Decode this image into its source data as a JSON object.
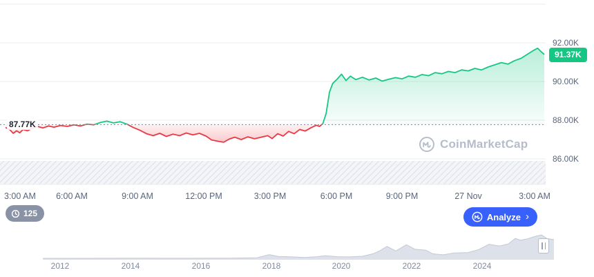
{
  "colors": {
    "up": "#16c784",
    "down": "#ea3943",
    "accent_blue": "#3861fb",
    "axis_text": "#58667e",
    "gridline": "#ebedf1",
    "baseline_dots": "#767f92",
    "nav_fill": "#dde1e9",
    "nav_stroke": "#c2c9d6"
  },
  "watermark": {
    "text": "CoinMarketCap"
  },
  "controls": {
    "history_count": "125",
    "analyze_label": "Analyze",
    "analyze_chevron": "›"
  },
  "chart_data": {
    "type": "line",
    "title": "Cryptocurrency price — 24h baseline chart with historical navigator",
    "baseline_value": 87.77,
    "baseline_label": "87.77K",
    "current_price_value": 91.37,
    "current_price_label": "91.37K",
    "y_unit": "K",
    "ylim": [
      85.5,
      94
    ],
    "y_ticks": [
      92,
      90,
      88,
      86
    ],
    "y_tick_labels": [
      "92.00K",
      "90.00K",
      "88.00K",
      "86.00K"
    ],
    "gridline_values": [
      94,
      92,
      90,
      88,
      86
    ],
    "x_ticks_hours": [
      0,
      3,
      6,
      9,
      12,
      15,
      18,
      21,
      24
    ],
    "x_tick_labels": [
      "3:00 AM",
      "6:00 AM",
      "9:00 AM",
      "12:00 PM",
      "3:00 PM",
      "6:00 PM",
      "9:00 PM",
      "27 Nov",
      "3:00 AM"
    ],
    "x_hours_span": 24.45,
    "series": [
      {
        "name": "price",
        "points": [
          [
            0,
            87.62
          ],
          [
            0.2,
            87.5
          ],
          [
            0.35,
            87.32
          ],
          [
            0.5,
            87.45
          ],
          [
            0.65,
            87.35
          ],
          [
            0.8,
            87.52
          ],
          [
            1,
            87.45
          ],
          [
            1.2,
            87.58
          ],
          [
            1.45,
            87.68
          ],
          [
            1.7,
            87.6
          ],
          [
            1.95,
            87.7
          ],
          [
            2.2,
            87.64
          ],
          [
            2.5,
            87.73
          ],
          [
            2.8,
            87.68
          ],
          [
            3.1,
            87.76
          ],
          [
            3.4,
            87.7
          ],
          [
            3.7,
            87.8
          ],
          [
            4,
            87.76
          ],
          [
            4.3,
            87.88
          ],
          [
            4.6,
            87.95
          ],
          [
            4.9,
            87.86
          ],
          [
            5.2,
            87.92
          ],
          [
            5.5,
            87.8
          ],
          [
            5.8,
            87.62
          ],
          [
            6.1,
            87.48
          ],
          [
            6.4,
            87.3
          ],
          [
            6.7,
            87.2
          ],
          [
            7,
            87.32
          ],
          [
            7.3,
            87.16
          ],
          [
            7.6,
            87.28
          ],
          [
            7.9,
            87.2
          ],
          [
            8.2,
            87.34
          ],
          [
            8.5,
            87.24
          ],
          [
            8.8,
            87.32
          ],
          [
            9.1,
            87.18
          ],
          [
            9.35,
            86.98
          ],
          [
            9.6,
            86.92
          ],
          [
            9.9,
            86.86
          ],
          [
            10.15,
            87.02
          ],
          [
            10.4,
            87.12
          ],
          [
            10.7,
            87
          ],
          [
            11,
            87.14
          ],
          [
            11.3,
            87.04
          ],
          [
            11.6,
            87.12
          ],
          [
            11.9,
            87.2
          ],
          [
            12.1,
            87.05
          ],
          [
            12.35,
            87.3
          ],
          [
            12.6,
            87.18
          ],
          [
            12.85,
            87.42
          ],
          [
            13.1,
            87.3
          ],
          [
            13.35,
            87.52
          ],
          [
            13.6,
            87.44
          ],
          [
            13.85,
            87.6
          ],
          [
            14.1,
            87.74
          ],
          [
            14.25,
            87.68
          ],
          [
            14.4,
            87.82
          ],
          [
            14.55,
            88.35
          ],
          [
            14.7,
            89.45
          ],
          [
            14.85,
            89.9
          ],
          [
            15.05,
            90.12
          ],
          [
            15.25,
            90.38
          ],
          [
            15.45,
            90.05
          ],
          [
            15.65,
            90.28
          ],
          [
            15.9,
            90.1
          ],
          [
            16.2,
            90.22
          ],
          [
            16.5,
            90.08
          ],
          [
            16.8,
            90.18
          ],
          [
            17.1,
            90.02
          ],
          [
            17.4,
            90.12
          ],
          [
            17.7,
            90.2
          ],
          [
            18,
            90.14
          ],
          [
            18.3,
            90.28
          ],
          [
            18.6,
            90.22
          ],
          [
            18.9,
            90.36
          ],
          [
            19.2,
            90.3
          ],
          [
            19.5,
            90.46
          ],
          [
            19.8,
            90.4
          ],
          [
            20.1,
            90.52
          ],
          [
            20.4,
            90.46
          ],
          [
            20.7,
            90.6
          ],
          [
            21,
            90.55
          ],
          [
            21.3,
            90.68
          ],
          [
            21.6,
            90.6
          ],
          [
            21.9,
            90.75
          ],
          [
            22.2,
            90.86
          ],
          [
            22.5,
            90.98
          ],
          [
            22.8,
            90.9
          ],
          [
            23.1,
            91.08
          ],
          [
            23.4,
            91.2
          ],
          [
            23.7,
            91.42
          ],
          [
            23.95,
            91.6
          ],
          [
            24.15,
            91.72
          ],
          [
            24.3,
            91.55
          ],
          [
            24.45,
            91.4
          ]
        ]
      }
    ],
    "navigator": {
      "year_ticks": [
        2012,
        2014,
        2016,
        2018,
        2020,
        2022,
        2024
      ],
      "year_labels": [
        "2012",
        "2014",
        "2016",
        "2018",
        "2020",
        "2022",
        "2024"
      ],
      "unit": "K",
      "points": [
        [
          2011.5,
          0.1
        ],
        [
          2012,
          0.15
        ],
        [
          2012.5,
          0.1
        ],
        [
          2013,
          0.2
        ],
        [
          2013.6,
          0.5
        ],
        [
          2013.95,
          1.1
        ],
        [
          2014.3,
          0.7
        ],
        [
          2014.8,
          0.4
        ],
        [
          2015.3,
          0.3
        ],
        [
          2015.8,
          0.45
        ],
        [
          2016.3,
          0.65
        ],
        [
          2016.8,
          0.95
        ],
        [
          2017.2,
          1.6
        ],
        [
          2017.6,
          3
        ],
        [
          2017.95,
          18
        ],
        [
          2018.2,
          9.5
        ],
        [
          2018.6,
          7
        ],
        [
          2018.95,
          4
        ],
        [
          2019.3,
          8
        ],
        [
          2019.55,
          12.5
        ],
        [
          2019.9,
          8
        ],
        [
          2020.2,
          7
        ],
        [
          2020.6,
          10
        ],
        [
          2020.9,
          22
        ],
        [
          2021.1,
          38
        ],
        [
          2021.3,
          58
        ],
        [
          2021.55,
          36
        ],
        [
          2021.85,
          66
        ],
        [
          2022.1,
          44
        ],
        [
          2022.4,
          40
        ],
        [
          2022.6,
          22
        ],
        [
          2022.9,
          17
        ],
        [
          2023.2,
          26
        ],
        [
          2023.6,
          28
        ],
        [
          2023.9,
          42
        ],
        [
          2024.2,
          68
        ],
        [
          2024.5,
          60
        ],
        [
          2024.75,
          70
        ],
        [
          2024.95,
          97
        ],
        [
          2025.1,
          88
        ],
        [
          2025.3,
          95
        ],
        [
          2025.5,
          106
        ],
        [
          2025.7,
          114
        ],
        [
          2025.85,
          96
        ],
        [
          2026.05,
          91
        ]
      ]
    }
  }
}
